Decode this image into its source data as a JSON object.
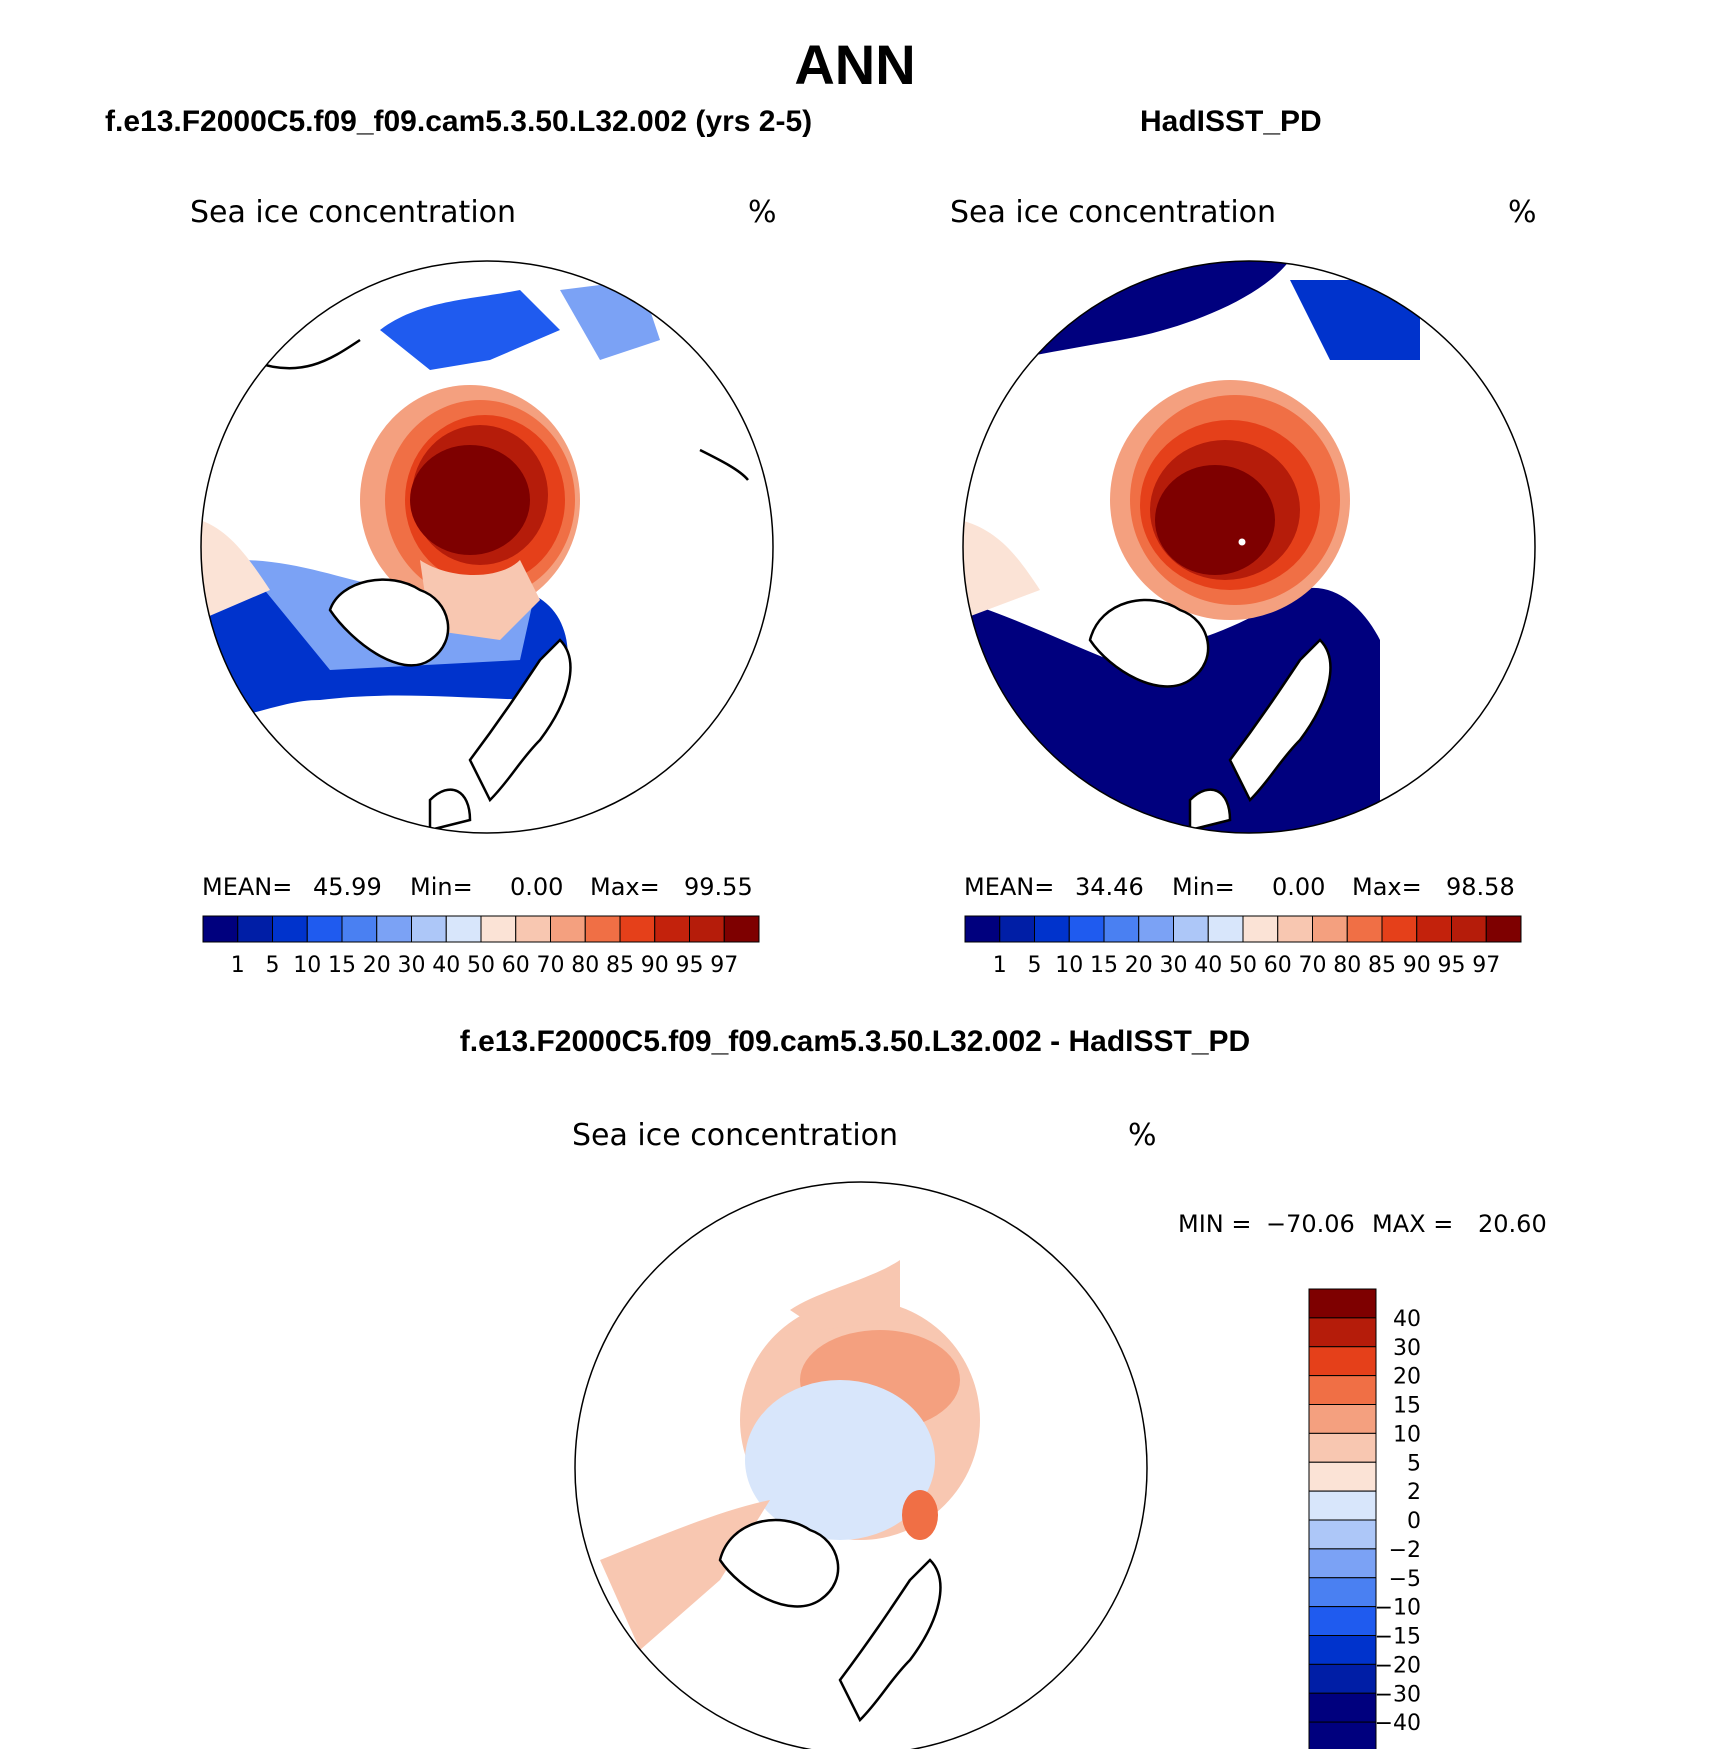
{
  "page": {
    "title": "ANN"
  },
  "panels": [
    {
      "case_title": "f.e13.F2000C5.f09_f09.cam5.3.50.L32.002 (yrs 2-5)",
      "variable": "Sea ice concentration",
      "units": "%",
      "stats": {
        "mean_label": "MEAN=",
        "mean": "45.99",
        "min_label": "Min=",
        "min": "0.00",
        "max_label": "Max=",
        "max": "99.55"
      }
    },
    {
      "case_title": "HadISST_PD",
      "variable": "Sea ice concentration",
      "units": "%",
      "stats": {
        "mean_label": "MEAN=",
        "mean": "34.46",
        "min_label": "Min=",
        "min": "0.00",
        "max_label": "Max=",
        "max": "98.58"
      }
    },
    {
      "case_title": "f.e13.F2000C5.f09_f09.cam5.3.50.L32.002 - HadISST_PD",
      "variable": "Sea ice concentration",
      "units": "%",
      "stats": {
        "min_label": "MIN =",
        "min": "−70.06",
        "max_label": "MAX =",
        "max": "20.60"
      }
    }
  ],
  "chart_data": [
    {
      "type": "heatmap",
      "projection": "north-polar-stereographic",
      "title": "Sea ice concentration",
      "units": "%",
      "mean": 45.99,
      "min": 0.0,
      "max": 99.55,
      "colorbar_levels": [
        "1",
        "5",
        "10",
        "15",
        "20",
        "30",
        "40",
        "50",
        "60",
        "70",
        "80",
        "85",
        "90",
        "95",
        "97"
      ],
      "colorbar_colors": [
        "#00007e",
        "#001ea6",
        "#0033cc",
        "#1f5bef",
        "#4a80f2",
        "#7ba2f5",
        "#adc7f8",
        "#d8e6fb",
        "#fbe3d6",
        "#f8c7b1",
        "#f4a07f",
        "#f06f45",
        "#e5401a",
        "#c3220c",
        "#b51c0a",
        "#7e0000"
      ]
    },
    {
      "type": "heatmap",
      "projection": "north-polar-stereographic",
      "title": "Sea ice concentration",
      "units": "%",
      "mean": 34.46,
      "min": 0.0,
      "max": 98.58,
      "colorbar_levels": [
        "1",
        "5",
        "10",
        "15",
        "20",
        "30",
        "40",
        "50",
        "60",
        "70",
        "80",
        "85",
        "90",
        "95",
        "97"
      ],
      "colorbar_colors": [
        "#00007e",
        "#001ea6",
        "#0033cc",
        "#1f5bef",
        "#4a80f2",
        "#7ba2f5",
        "#adc7f8",
        "#d8e6fb",
        "#fbe3d6",
        "#f8c7b1",
        "#f4a07f",
        "#f06f45",
        "#e5401a",
        "#c3220c",
        "#b51c0a",
        "#7e0000"
      ]
    },
    {
      "type": "heatmap",
      "projection": "north-polar-stereographic",
      "title": "Sea ice concentration",
      "units": "%",
      "min": -70.06,
      "max": 20.6,
      "colorbar_levels": [
        "40",
        "30",
        "20",
        "15",
        "10",
        "5",
        "2",
        "0",
        "−2",
        "−5",
        "−10",
        "−15",
        "−20",
        "−30",
        "−40"
      ],
      "colorbar_colors": [
        "#7e0000",
        "#b51c0a",
        "#e5401a",
        "#f06f45",
        "#f4a07f",
        "#f8c7b1",
        "#fbe3d6",
        "#d8e6fb",
        "#adc7f8",
        "#7ba2f5",
        "#4a80f2",
        "#1f5bef",
        "#0033cc",
        "#001ea6",
        "#00007e",
        "#00007e"
      ]
    }
  ]
}
